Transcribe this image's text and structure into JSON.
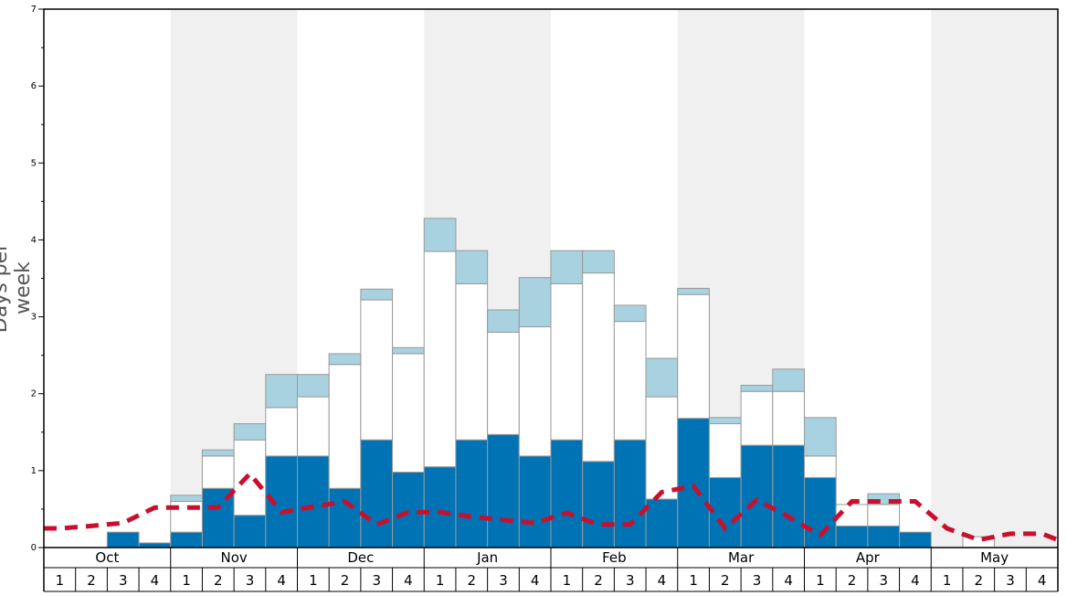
{
  "chart_data": {
    "type": "bar",
    "ylabel": "Days per week",
    "ylim": [
      0,
      7
    ],
    "yticks": [
      "0",
      "1",
      "2",
      "3",
      "4",
      "5",
      "6",
      "7"
    ],
    "months": [
      "Oct",
      "Nov",
      "Dec",
      "Jan",
      "Feb",
      "Mar",
      "Apr",
      "May"
    ],
    "week_labels": [
      "1",
      "2",
      "3",
      "4"
    ],
    "shaded_months": [
      "Nov",
      "Jan",
      "Mar",
      "May"
    ],
    "colors": {
      "dark": "#0073b5",
      "white": "#ffffff",
      "light": "#a8d2df",
      "line": "#c8102e",
      "shade": "#f0f0f0",
      "border": "#999999"
    },
    "series": [
      {
        "values": [
          0,
          0,
          0.2,
          0.06,
          0.2,
          0.77,
          0.42,
          1.19,
          1.19,
          0.77,
          1.4,
          0.98,
          1.05,
          1.4,
          1.47,
          1.19,
          1.4,
          1.12,
          1.4,
          0.63,
          1.68,
          0.91,
          1.33,
          1.33,
          0.91,
          0.28,
          0.28,
          0.2,
          0,
          0,
          0,
          0
        ]
      },
      {
        "values": [
          0,
          0,
          0,
          0,
          0.4,
          0.42,
          0.98,
          0.63,
          0.77,
          1.61,
          1.82,
          1.54,
          2.8,
          2.03,
          1.33,
          1.68,
          2.03,
          2.45,
          1.54,
          1.33,
          1.61,
          0.7,
          0.7,
          0.7,
          0.28,
          0.28,
          0.28,
          0,
          0,
          0.14,
          0,
          0
        ]
      },
      {
        "values": [
          0,
          0,
          0,
          0,
          0.08,
          0.08,
          0.21,
          0.43,
          0.29,
          0.14,
          0.14,
          0.08,
          0.43,
          0.43,
          0.29,
          0.64,
          0.43,
          0.29,
          0.21,
          0.5,
          0.08,
          0.08,
          0.08,
          0.29,
          0.5,
          0,
          0.14,
          0,
          0,
          0,
          0,
          0
        ]
      },
      {
        "values": [
          0.25,
          0.28,
          0.32,
          0.52,
          0.52,
          0.52,
          0.96,
          0.46,
          0.53,
          0.6,
          0.3,
          0.46,
          0.46,
          0.4,
          0.36,
          0.32,
          0.45,
          0.3,
          0.3,
          0.72,
          0.8,
          0.25,
          0.62,
          0.4,
          0.16,
          0.6,
          0.6,
          0.6,
          0.25,
          0.1,
          0.18,
          0.18
        ]
      }
    ],
    "line_end_value": 0.1,
    "legend": "none",
    "grid": false
  }
}
